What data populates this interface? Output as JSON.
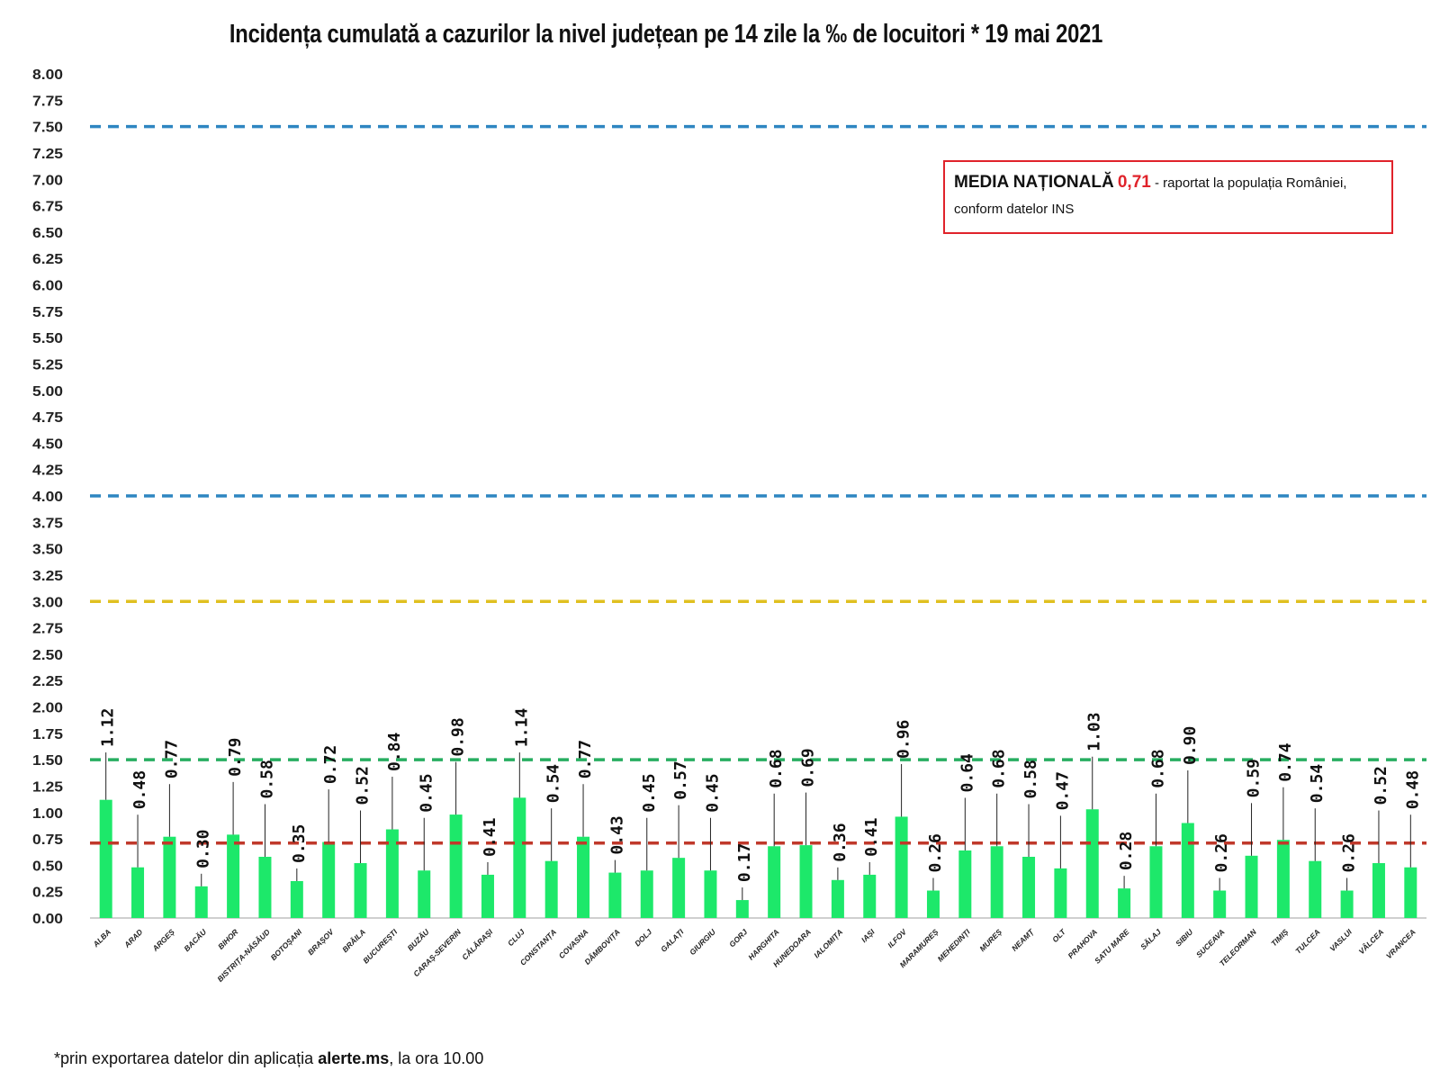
{
  "page": {
    "title": "Incidența cumulată a cazurilor la nivel județean pe 14 zile la ‰ de locuitori *  19 mai 2021",
    "footnote_prefix": "*prin exportarea datelor din aplicația ",
    "footnote_bold": "alerte.ms",
    "footnote_suffix": ", la ora 10.00"
  },
  "annotation": {
    "label": "MEDIA NAȚIONALĂ",
    "value": "0,71",
    "text_line1": " - raportat la populația României,",
    "text_line2": "conform datelor INS",
    "border_color": "#e0232b"
  },
  "chart_data": {
    "type": "bar",
    "title": "Incidența cumulată a cazurilor la nivel județean pe 14 zile la ‰ de locuitori *  19 mai 2021",
    "xlabel": "",
    "ylabel": "",
    "ylim": [
      0,
      8
    ],
    "yticks": [
      "0.00",
      "0.25",
      "0.50",
      "0.75",
      "1.00",
      "1.25",
      "1.50",
      "1.75",
      "2.00",
      "2.25",
      "2.50",
      "2.75",
      "3.00",
      "3.25",
      "3.50",
      "3.75",
      "4.00",
      "4.25",
      "4.50",
      "4.75",
      "5.00",
      "5.25",
      "5.50",
      "5.75",
      "6.00",
      "6.25",
      "6.50",
      "6.75",
      "7.00",
      "7.25",
      "7.50",
      "7.75",
      "8.00"
    ],
    "grid": false,
    "bar_color": "#1de86a",
    "categories": [
      "ALBA",
      "ARAD",
      "ARGEȘ",
      "BACĂU",
      "BIHOR",
      "BISTRIȚA-NĂSĂUD",
      "BOTOȘANI",
      "BRAȘOV",
      "BRĂILA",
      "BUCUREȘTI",
      "BUZĂU",
      "CARAȘ-SEVERIN",
      "CĂLĂRAȘI",
      "CLUJ",
      "CONSTANȚA",
      "COVASNA",
      "DÂMBOVIȚA",
      "DOLJ",
      "GALAȚI",
      "GIURGIU",
      "GORJ",
      "HARGHITA",
      "HUNEDOARA",
      "IALOMIȚA",
      "IAȘI",
      "ILFOV",
      "MARAMUREȘ",
      "MEHEDINȚI",
      "MUREȘ",
      "NEAMȚ",
      "OLT",
      "PRAHOVA",
      "SATU MARE",
      "SĂLAJ",
      "SIBIU",
      "SUCEAVA",
      "TELEORMAN",
      "TIMIȘ",
      "TULCEA",
      "VASLUI",
      "VÂLCEA",
      "VRANCEA"
    ],
    "values": [
      1.12,
      0.48,
      0.77,
      0.3,
      0.79,
      0.58,
      0.35,
      0.72,
      0.52,
      0.84,
      0.45,
      0.98,
      0.41,
      1.14,
      0.54,
      0.77,
      0.43,
      0.45,
      0.57,
      0.45,
      0.17,
      0.68,
      0.69,
      0.36,
      0.41,
      0.96,
      0.26,
      0.64,
      0.68,
      0.58,
      0.47,
      1.03,
      0.28,
      0.68,
      0.9,
      0.26,
      0.59,
      0.74,
      0.54,
      0.26,
      0.52,
      0.48
    ],
    "labels": [
      "1.12",
      "0.48",
      "0.77",
      "0.30",
      "0.79",
      "0.58",
      "0.35",
      "0.72",
      "0.52",
      "0.84",
      "0.45",
      "0.98",
      "0.41",
      "1.14",
      "0.54",
      "0.77",
      "0.43",
      "0.45",
      "0.57",
      "0.45",
      "0.17",
      "0.68",
      "0.69",
      "0.36",
      "0.41",
      "0.96",
      "0.26",
      "0.64",
      "0.68",
      "0.58",
      "0.47",
      "1.03",
      "0.28",
      "0.68",
      "0.90",
      "0.26",
      "0.59",
      "0.74",
      "0.54",
      "0.26",
      "0.52",
      "0.48"
    ],
    "reference_lines": [
      {
        "value": 7.5,
        "color": "#2e86c1"
      },
      {
        "value": 4.0,
        "color": "#2e86c1"
      },
      {
        "value": 3.0,
        "color": "#e0c020"
      },
      {
        "value": 1.5,
        "color": "#27ae60"
      },
      {
        "value": 0.71,
        "color": "#c0392b"
      }
    ]
  }
}
